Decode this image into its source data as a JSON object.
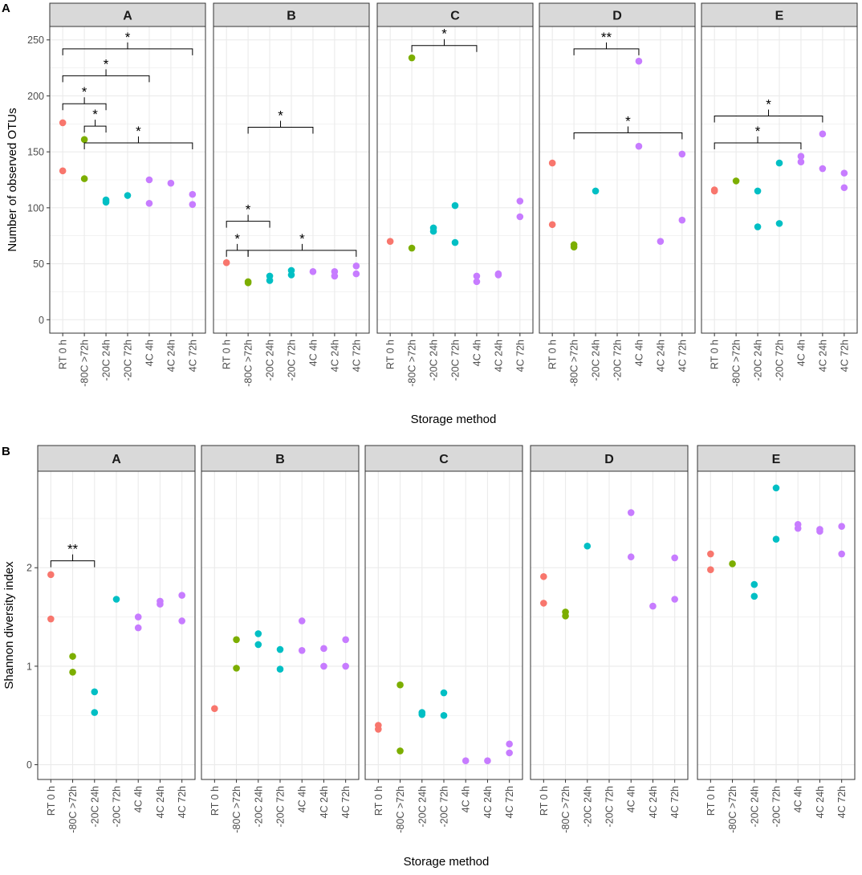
{
  "figure": {
    "panel_a_letter": "A",
    "panel_b_letter": "B"
  },
  "colors": {
    "RT": "#F8766D",
    "80C": "#7CAE00",
    "20C": "#00BFC4",
    "4C": "#C77CFF",
    "strip_fill": "#D9D9D9",
    "grid": "#EBEBEB"
  },
  "chart_data": [
    {
      "type": "scatter",
      "panel": "A",
      "ylabel": "Number of observed OTUs",
      "xlabel": "Storage method",
      "ylim": [
        -12,
        262
      ],
      "yticks": [
        0,
        50,
        100,
        150,
        200,
        250
      ],
      "categories": [
        "RT 0 h",
        "-80C >72h",
        "-20C 24h",
        "-20C 72h",
        "4C 4h",
        "4C 24h",
        "4C 72h"
      ],
      "groups": [
        "RT",
        "80C",
        "20C",
        "20C",
        "4C",
        "4C",
        "4C"
      ],
      "facets": [
        {
          "label": "A",
          "points": [
            [
              0,
              176
            ],
            [
              0,
              133
            ],
            [
              1,
              161
            ],
            [
              1,
              126
            ],
            [
              2,
              107
            ],
            [
              2,
              105
            ],
            [
              3,
              111
            ],
            [
              4,
              125
            ],
            [
              4,
              104
            ],
            [
              5,
              122
            ],
            [
              6,
              112
            ],
            [
              6,
              103
            ]
          ],
          "brackets": [
            {
              "from": 0,
              "to": 6,
              "y": 242,
              "label": "*"
            },
            {
              "from": 0,
              "to": 4,
              "y": 218,
              "label": "*"
            },
            {
              "from": 0,
              "to": 2,
              "y": 193,
              "label": "*"
            },
            {
              "from": 1,
              "to": 2,
              "y": 173,
              "label": "*"
            },
            {
              "from": 1,
              "to": 6,
              "y": 158,
              "label": "*"
            }
          ]
        },
        {
          "label": "B",
          "points": [
            [
              0,
              51
            ],
            [
              1,
              34
            ],
            [
              1,
              33
            ],
            [
              2,
              39
            ],
            [
              2,
              35
            ],
            [
              3,
              44
            ],
            [
              3,
              40
            ],
            [
              4,
              43
            ],
            [
              5,
              43
            ],
            [
              5,
              39
            ],
            [
              6,
              48
            ],
            [
              6,
              41
            ]
          ],
          "brackets": [
            {
              "from": 1,
              "to": 4,
              "y": 172,
              "label": "*"
            },
            {
              "from": 0,
              "to": 2,
              "y": 88,
              "label": "*"
            },
            {
              "from": 0,
              "to": 1,
              "y": 62,
              "label": "*"
            },
            {
              "from": 1,
              "to": 6,
              "y": 62,
              "label": "*"
            }
          ]
        },
        {
          "label": "C",
          "points": [
            [
              0,
              70
            ],
            [
              1,
              64
            ],
            [
              2,
              82
            ],
            [
              2,
              79
            ],
            [
              3,
              102
            ],
            [
              3,
              69
            ],
            [
              4,
              39
            ],
            [
              4,
              34
            ],
            [
              5,
              41
            ],
            [
              5,
              40
            ],
            [
              6,
              106
            ],
            [
              6,
              92
            ]
          ],
          "extra_points": [
            [
              1,
              234
            ]
          ],
          "brackets": [
            {
              "from": 1,
              "to": 4,
              "y": 245,
              "label": "*"
            }
          ]
        },
        {
          "label": "D",
          "points": [
            [
              0,
              140
            ],
            [
              0,
              85
            ],
            [
              1,
              67
            ],
            [
              1,
              65
            ],
            [
              2,
              115
            ],
            [
              4,
              231
            ],
            [
              4,
              155
            ],
            [
              5,
              70
            ],
            [
              6,
              148
            ],
            [
              6,
              89
            ]
          ],
          "brackets": [
            {
              "from": 1,
              "to": 4,
              "y": 242,
              "label": "**"
            },
            {
              "from": 1,
              "to": 6,
              "y": 167,
              "label": "*"
            }
          ]
        },
        {
          "label": "E",
          "points": [
            [
              0,
              116
            ],
            [
              0,
              115
            ],
            [
              1,
              124
            ],
            [
              2,
              115
            ],
            [
              2,
              83
            ],
            [
              3,
              140
            ],
            [
              3,
              86
            ],
            [
              4,
              146
            ],
            [
              4,
              141
            ],
            [
              5,
              166
            ],
            [
              5,
              135
            ],
            [
              6,
              131
            ],
            [
              6,
              118
            ]
          ],
          "brackets": [
            {
              "from": 0,
              "to": 5,
              "y": 182,
              "label": "*"
            },
            {
              "from": 0,
              "to": 4,
              "y": 158,
              "label": "*"
            }
          ]
        }
      ]
    },
    {
      "type": "scatter",
      "panel": "B",
      "ylabel": "Shannon diversity index",
      "xlabel": "Storage method",
      "ylim": [
        -0.15,
        2.98
      ],
      "yticks": [
        0,
        1,
        2
      ],
      "categories": [
        "RT 0 h",
        "-80C >72h",
        "-20C 24h",
        "-20C 72h",
        "4C 4h",
        "4C 24h",
        "4C 72h"
      ],
      "groups": [
        "RT",
        "80C",
        "20C",
        "20C",
        "4C",
        "4C",
        "4C"
      ],
      "facets": [
        {
          "label": "A",
          "points": [
            [
              0,
              1.93
            ],
            [
              0,
              1.48
            ],
            [
              1,
              1.1
            ],
            [
              1,
              0.94
            ],
            [
              2,
              0.74
            ],
            [
              2,
              0.53
            ],
            [
              3,
              1.68
            ],
            [
              4,
              1.5
            ],
            [
              4,
              1.39
            ],
            [
              5,
              1.66
            ],
            [
              5,
              1.63
            ],
            [
              6,
              1.72
            ],
            [
              6,
              1.46
            ]
          ],
          "brackets": [
            {
              "from": 0,
              "to": 2,
              "y": 2.07,
              "label": "**"
            }
          ]
        },
        {
          "label": "B",
          "points": [
            [
              0,
              0.57
            ],
            [
              1,
              1.27
            ],
            [
              1,
              0.98
            ],
            [
              2,
              1.33
            ],
            [
              2,
              1.22
            ],
            [
              3,
              1.17
            ],
            [
              3,
              0.97
            ],
            [
              4,
              1.46
            ],
            [
              4,
              1.16
            ],
            [
              5,
              1.18
            ],
            [
              5,
              1.0
            ],
            [
              6,
              1.27
            ],
            [
              6,
              1.0
            ]
          ],
          "brackets": []
        },
        {
          "label": "C",
          "points": [
            [
              0,
              0.4
            ],
            [
              0,
              0.36
            ],
            [
              1,
              0.81
            ],
            [
              1,
              0.14
            ],
            [
              2,
              0.53
            ],
            [
              2,
              0.51
            ],
            [
              3,
              0.73
            ],
            [
              3,
              0.5
            ],
            [
              4,
              0.04
            ],
            [
              5,
              0.04
            ],
            [
              6,
              0.21
            ],
            [
              6,
              0.12
            ]
          ],
          "brackets": []
        },
        {
          "label": "D",
          "points": [
            [
              0,
              1.91
            ],
            [
              0,
              1.64
            ],
            [
              1,
              1.55
            ],
            [
              1,
              1.51
            ],
            [
              2,
              2.22
            ],
            [
              4,
              2.56
            ],
            [
              4,
              2.11
            ],
            [
              5,
              1.61
            ],
            [
              6,
              2.1
            ],
            [
              6,
              1.68
            ]
          ],
          "brackets": []
        },
        {
          "label": "E",
          "points": [
            [
              0,
              2.14
            ],
            [
              0,
              1.98
            ],
            [
              1,
              2.04
            ],
            [
              2,
              1.83
            ],
            [
              2,
              1.71
            ],
            [
              3,
              2.81
            ],
            [
              3,
              2.29
            ],
            [
              4,
              2.44
            ],
            [
              4,
              2.4
            ],
            [
              5,
              2.39
            ],
            [
              5,
              2.37
            ],
            [
              6,
              2.42
            ],
            [
              6,
              2.14
            ]
          ],
          "brackets": []
        }
      ]
    }
  ]
}
